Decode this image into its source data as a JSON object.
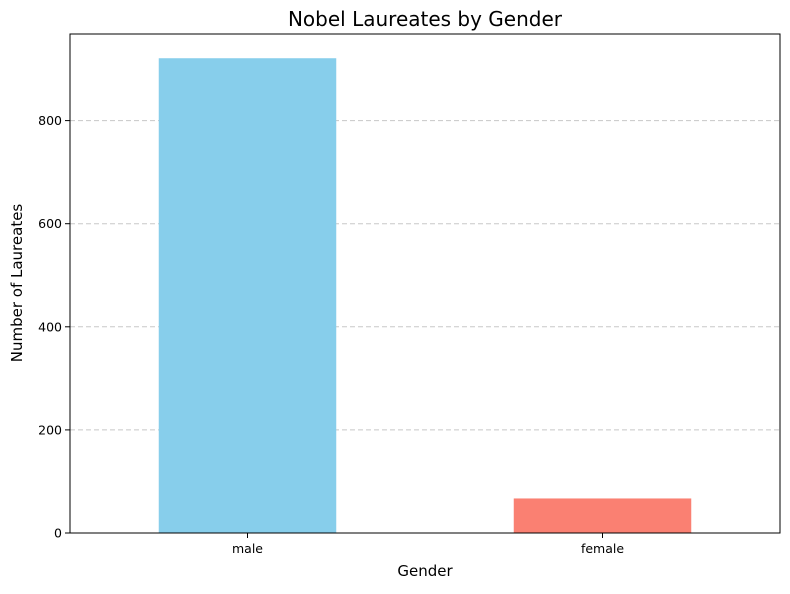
{
  "chart_data": {
    "type": "bar",
    "title": "Nobel Laureates by Gender",
    "xlabel": "Gender",
    "ylabel": "Number of Laureates",
    "categories": [
      "male",
      "female"
    ],
    "values": [
      921,
      67
    ],
    "colors": [
      "#87ceeb",
      "#fa8072"
    ],
    "ylim": [
      0,
      968
    ],
    "yticks": [
      0,
      200,
      400,
      600,
      800
    ],
    "grid": {
      "axis": "y",
      "style": "dashed",
      "color": "#c8c8c8"
    }
  }
}
